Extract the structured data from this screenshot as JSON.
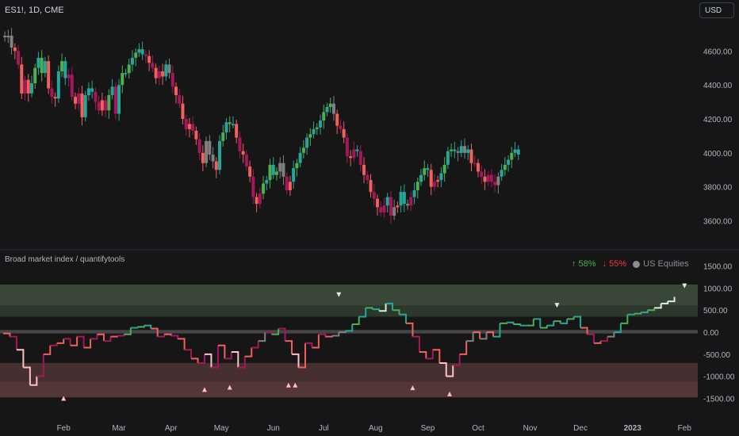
{
  "header": {
    "symbol": "ES1!, 1D, CME",
    "currency_button": "USD"
  },
  "indicator": {
    "title": "Broad market index / quantifytools",
    "legend_up": "↑ 58%",
    "legend_down": "↓ 55%",
    "legend_series": "US Equities"
  },
  "colors": {
    "background": "#161616",
    "up_strong": "#4caf50",
    "up_teal": "#26a69a",
    "neutral": "#808080",
    "down_strong": "#f0605d",
    "down_magenta": "#a3185a",
    "extreme_light_down": "#ffc1c1",
    "extreme_light_up": "#d8f0d8",
    "zone_top": "#3c4c3c",
    "zone_bottom": "#5a3a3a",
    "zone_mid": "#4a4a4a"
  },
  "chart_data": [
    {
      "type": "candlestick",
      "title": "ES1!, 1D, CME",
      "ylim": [
        3500,
        4760
      ],
      "y_ticks": [
        "3600.00",
        "3800.00",
        "4000.00",
        "4200.00",
        "4400.00",
        "4600.00"
      ],
      "y_tick_values": [
        3600,
        3800,
        4000,
        4200,
        4400,
        4600
      ],
      "x_labels": [
        "Feb",
        "Mar",
        "Apr",
        "May",
        "Jun",
        "Jul",
        "Aug",
        "Sep",
        "Oct",
        "Nov",
        "Dec",
        "2023",
        "Feb"
      ],
      "x_label_days": [
        36,
        69,
        100,
        130,
        161,
        191,
        222,
        253,
        283,
        314,
        344,
        375,
        406
      ],
      "close_series": [
        [
          1,
          4680
        ],
        [
          3,
          4690
        ],
        [
          5,
          4620
        ],
        [
          7,
          4600
        ],
        [
          9,
          4520
        ],
        [
          11,
          4350
        ],
        [
          13,
          4430
        ],
        [
          15,
          4350
        ],
        [
          17,
          4410
        ],
        [
          19,
          4500
        ],
        [
          21,
          4560
        ],
        [
          23,
          4470
        ],
        [
          25,
          4540
        ],
        [
          27,
          4380
        ],
        [
          29,
          4330
        ],
        [
          31,
          4320
        ],
        [
          33,
          4480
        ],
        [
          35,
          4540
        ],
        [
          37,
          4440
        ],
        [
          39,
          4460
        ],
        [
          41,
          4330
        ],
        [
          43,
          4290
        ],
        [
          45,
          4350
        ],
        [
          47,
          4210
        ],
        [
          49,
          4340
        ],
        [
          51,
          4380
        ],
        [
          53,
          4360
        ],
        [
          55,
          4300
        ],
        [
          57,
          4250
        ],
        [
          59,
          4310
        ],
        [
          61,
          4250
        ],
        [
          63,
          4340
        ],
        [
          65,
          4390
        ],
        [
          67,
          4230
        ],
        [
          69,
          4400
        ],
        [
          71,
          4470
        ],
        [
          73,
          4470
        ],
        [
          75,
          4520
        ],
        [
          77,
          4560
        ],
        [
          79,
          4590
        ],
        [
          81,
          4610
        ],
        [
          83,
          4580
        ],
        [
          85,
          4570
        ],
        [
          87,
          4530
        ],
        [
          89,
          4500
        ],
        [
          91,
          4440
        ],
        [
          93,
          4480
        ],
        [
          95,
          4450
        ],
        [
          97,
          4520
        ],
        [
          99,
          4470
        ],
        [
          101,
          4390
        ],
        [
          103,
          4340
        ],
        [
          105,
          4290
        ],
        [
          107,
          4200
        ],
        [
          109,
          4140
        ],
        [
          111,
          4170
        ],
        [
          113,
          4130
        ],
        [
          115,
          4080
        ],
        [
          117,
          4000
        ],
        [
          119,
          3940
        ],
        [
          121,
          4070
        ],
        [
          123,
          3990
        ],
        [
          125,
          3950
        ],
        [
          127,
          3900
        ],
        [
          129,
          4070
        ],
        [
          131,
          4120
        ],
        [
          133,
          4180
        ],
        [
          135,
          4170
        ],
        [
          137,
          4170
        ],
        [
          139,
          4090
        ],
        [
          141,
          4010
        ],
        [
          143,
          3990
        ],
        [
          145,
          3920
        ],
        [
          147,
          3860
        ],
        [
          149,
          3740
        ],
        [
          151,
          3700
        ],
        [
          153,
          3760
        ],
        [
          155,
          3820
        ],
        [
          157,
          3840
        ],
        [
          159,
          3930
        ],
        [
          161,
          3870
        ],
        [
          163,
          3890
        ],
        [
          165,
          3940
        ],
        [
          167,
          3860
        ],
        [
          169,
          3780
        ],
        [
          171,
          3830
        ],
        [
          173,
          3910
        ],
        [
          175,
          3940
        ],
        [
          177,
          4000
        ],
        [
          179,
          4030
        ],
        [
          181,
          4090
        ],
        [
          183,
          4110
        ],
        [
          185,
          4140
        ],
        [
          187,
          4150
        ],
        [
          189,
          4190
        ],
        [
          191,
          4240
        ],
        [
          193,
          4270
        ],
        [
          195,
          4290
        ],
        [
          197,
          4230
        ],
        [
          199,
          4160
        ],
        [
          201,
          4140
        ],
        [
          203,
          4090
        ],
        [
          205,
          3980
        ],
        [
          207,
          3970
        ],
        [
          209,
          4020
        ],
        [
          211,
          4010
        ],
        [
          213,
          3930
        ],
        [
          215,
          3870
        ],
        [
          217,
          3840
        ],
        [
          219,
          3770
        ],
        [
          221,
          3730
        ],
        [
          223,
          3680
        ],
        [
          225,
          3650
        ],
        [
          227,
          3690
        ],
        [
          229,
          3740
        ],
        [
          231,
          3630
        ],
        [
          233,
          3680
        ],
        [
          235,
          3690
        ],
        [
          237,
          3770
        ],
        [
          239,
          3700
        ],
        [
          241,
          3690
        ],
        [
          243,
          3740
        ],
        [
          245,
          3780
        ],
        [
          247,
          3830
        ],
        [
          249,
          3870
        ],
        [
          251,
          3910
        ],
        [
          253,
          3900
        ],
        [
          255,
          3800
        ],
        [
          257,
          3830
        ],
        [
          259,
          3840
        ],
        [
          261,
          3880
        ],
        [
          263,
          3930
        ],
        [
          265,
          4010
        ],
        [
          267,
          4020
        ],
        [
          269,
          4010
        ],
        [
          271,
          4000
        ],
        [
          273,
          4040
        ],
        [
          275,
          4000
        ],
        [
          277,
          4020
        ],
        [
          279,
          3940
        ],
        [
          281,
          3940
        ],
        [
          283,
          3890
        ],
        [
          285,
          3860
        ],
        [
          287,
          3830
        ],
        [
          289,
          3870
        ],
        [
          291,
          3830
        ],
        [
          293,
          3810
        ],
        [
          295,
          3860
        ],
        [
          297,
          3900
        ],
        [
          299,
          3930
        ],
        [
          301,
          3960
        ],
        [
          303,
          4000
        ],
        [
          305,
          4020
        ],
        [
          307,
          3990
        ]
      ]
    },
    {
      "type": "line",
      "title": "Broad market index / quantifytools",
      "ylim": [
        -1600,
        1600
      ],
      "y_ticks": [
        "1500.00",
        "1000.00",
        "500.00",
        "0.00",
        "-500.00",
        "-1000.00",
        "-1500.00"
      ],
      "y_tick_values": [
        1500,
        1000,
        500,
        0,
        -500,
        -1000,
        -1500
      ],
      "zones": [
        {
          "from": 600,
          "to": 1080,
          "kind": "upper"
        },
        {
          "from": 350,
          "to": 600,
          "kind": "upper-inner"
        },
        {
          "from": -30,
          "to": 50,
          "kind": "mid"
        },
        {
          "from": -700,
          "to": -1120,
          "kind": "lower-inner"
        },
        {
          "from": -1120,
          "to": -1480,
          "kind": "lower"
        }
      ],
      "markers": [
        {
          "day": 36,
          "value": -1500,
          "dir": "up"
        },
        {
          "day": 200,
          "value": 850,
          "dir": "down"
        },
        {
          "day": 330,
          "value": 610,
          "dir": "down"
        },
        {
          "day": 120,
          "value": -1300,
          "dir": "up"
        },
        {
          "day": 135,
          "value": -1250,
          "dir": "up"
        },
        {
          "day": 170,
          "value": -1200,
          "dir": "up"
        },
        {
          "day": 174,
          "value": -1200,
          "dir": "up"
        },
        {
          "day": 244,
          "value": -1260,
          "dir": "up"
        },
        {
          "day": 266,
          "value": -1400,
          "dir": "up"
        },
        {
          "day": 406,
          "value": 1050,
          "dir": "down"
        }
      ],
      "series": [
        {
          "values": [
            [
              0,
              -30
            ],
            [
              4,
              -100
            ],
            [
              8,
              -400
            ],
            [
              12,
              -800
            ],
            [
              16,
              -1200
            ],
            [
              20,
              -1000
            ],
            [
              24,
              -500
            ],
            [
              28,
              -300
            ],
            [
              32,
              -250
            ],
            [
              36,
              -150
            ],
            [
              40,
              -300
            ],
            [
              44,
              -100
            ],
            [
              48,
              -350
            ],
            [
              52,
              -150
            ],
            [
              56,
              -50
            ],
            [
              60,
              -200
            ],
            [
              64,
              -100
            ],
            [
              68,
              -80
            ],
            [
              72,
              -50
            ],
            [
              76,
              100
            ],
            [
              80,
              120
            ],
            [
              84,
              150
            ],
            [
              88,
              80
            ],
            [
              92,
              -100
            ],
            [
              96,
              -50
            ],
            [
              100,
              -80
            ],
            [
              104,
              -150
            ],
            [
              108,
              -400
            ],
            [
              112,
              -600
            ],
            [
              116,
              -700
            ],
            [
              120,
              -500
            ],
            [
              124,
              -800
            ],
            [
              128,
              -300
            ],
            [
              132,
              -600
            ],
            [
              136,
              -450
            ],
            [
              140,
              -800
            ],
            [
              144,
              -550
            ],
            [
              148,
              -350
            ],
            [
              152,
              -200
            ],
            [
              156,
              0
            ],
            [
              160,
              -50
            ],
            [
              164,
              80
            ],
            [
              168,
              -200
            ],
            [
              172,
              -500
            ],
            [
              176,
              -800
            ],
            [
              180,
              -250
            ],
            [
              184,
              -350
            ],
            [
              188,
              -50
            ],
            [
              192,
              -100
            ],
            [
              196,
              -80
            ],
            [
              200,
              0
            ],
            [
              204,
              30
            ],
            [
              208,
              180
            ],
            [
              212,
              350
            ],
            [
              216,
              550
            ],
            [
              220,
              520
            ],
            [
              224,
              480
            ],
            [
              228,
              650
            ],
            [
              232,
              500
            ],
            [
              236,
              400
            ],
            [
              240,
              200
            ],
            [
              244,
              -100
            ],
            [
              248,
              -450
            ],
            [
              252,
              -600
            ],
            [
              256,
              -400
            ],
            [
              260,
              -700
            ],
            [
              264,
              -1000
            ],
            [
              268,
              -750
            ],
            [
              272,
              -500
            ],
            [
              276,
              -200
            ],
            [
              280,
              0
            ],
            [
              284,
              -150
            ],
            [
              288,
              0
            ],
            [
              292,
              -100
            ],
            [
              296,
              200
            ],
            [
              300,
              220
            ],
            [
              304,
              180
            ],
            [
              308,
              150
            ],
            [
              312,
              150
            ],
            [
              316,
              300
            ],
            [
              320,
              100
            ],
            [
              324,
              150
            ],
            [
              328,
              250
            ],
            [
              332,
              200
            ],
            [
              336,
              300
            ],
            [
              340,
              350
            ],
            [
              344,
              100
            ],
            [
              348,
              -50
            ],
            [
              352,
              -250
            ],
            [
              356,
              -200
            ],
            [
              360,
              -100
            ],
            [
              364,
              0
            ],
            [
              368,
              200
            ],
            [
              372,
              400
            ],
            [
              376,
              420
            ],
            [
              380,
              450
            ],
            [
              384,
              500
            ],
            [
              388,
              550
            ],
            [
              392,
              650
            ],
            [
              396,
              700
            ],
            [
              400,
              800
            ]
          ]
        }
      ]
    }
  ]
}
